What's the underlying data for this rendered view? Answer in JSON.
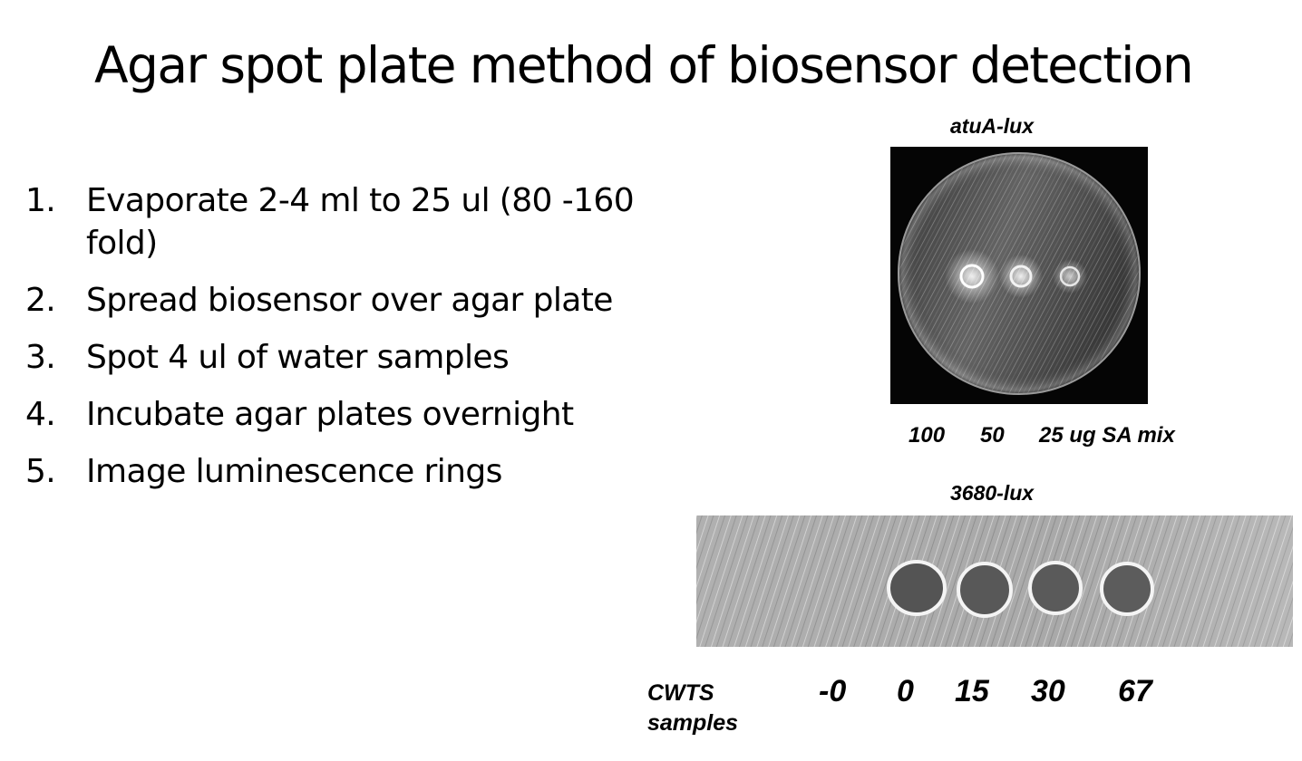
{
  "title": "Agar spot plate method of biosensor detection",
  "steps": [
    {
      "num": "1.",
      "text": "Evaporate 2-4 ml to 25 ul (80 -160 fold)"
    },
    {
      "num": "2.",
      "text": "Spread biosensor over agar plate"
    },
    {
      "num": "3.",
      "text": "Spot 4 ul of water samples"
    },
    {
      "num": "4.",
      "text": "Incubate agar plates overnight"
    },
    {
      "num": "5.",
      "text": "Image luminescence rings"
    }
  ],
  "plate": {
    "label": "atuA-lux",
    "doses": [
      "100",
      "50",
      "25 ug SA mix"
    ]
  },
  "strip": {
    "label": "3680-lux",
    "row_label_1": "CWTS",
    "row_label_2": "samples",
    "samples": [
      "-0",
      "0",
      "15",
      "30",
      "67"
    ]
  }
}
